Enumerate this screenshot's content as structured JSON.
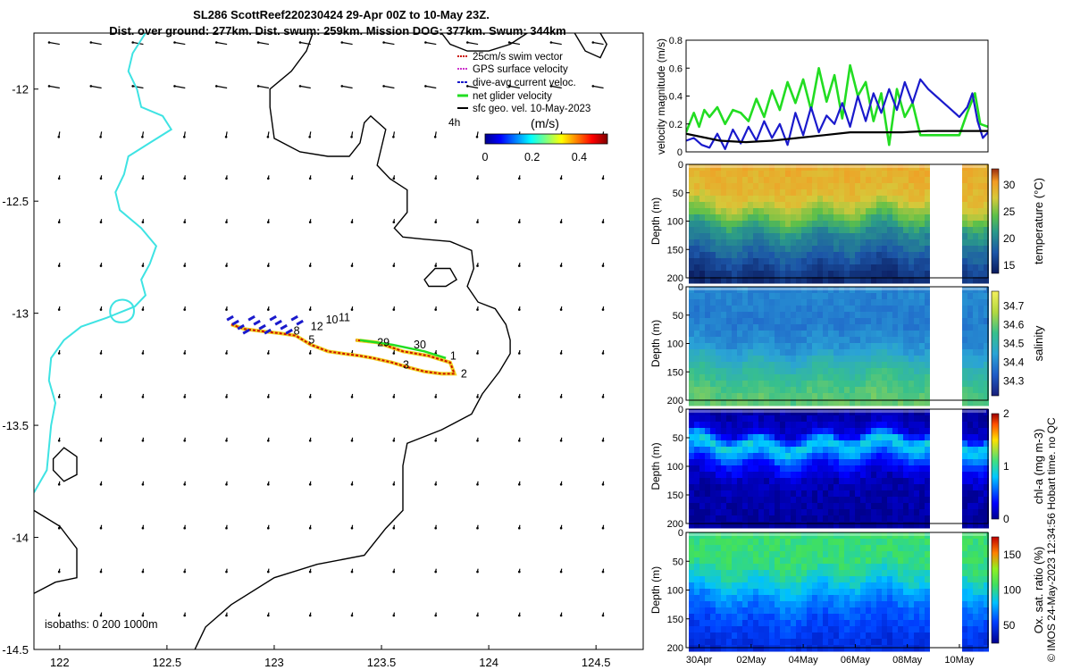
{
  "title": {
    "line1": "SL286 ScottReef220230424 29-Apr 00Z to 10-May 23Z.",
    "line2": "Dist. over ground: 277km. Dist. swum: 259km. Mission DOG: 377km. Swum: 344km"
  },
  "credit": "© IMOS 24-May-2023 12:34:56 Hobart time. no QC",
  "colors": {
    "coast": "#3ee3e3",
    "isobath": "#000000",
    "swim": "#cc1100",
    "gps": "#cc33cc",
    "dive": "#1a1acc",
    "net": "#22dd22",
    "geo": "#000000"
  },
  "chart_data": [
    {
      "type": "map",
      "name": "glider-track-map",
      "xlim": [
        121.88,
        124.72
      ],
      "ylim": [
        -14.5,
        -11.75
      ],
      "xticks": [
        "122",
        "122.5",
        "123",
        "123.5",
        "124",
        "124.5"
      ],
      "xtick_values": [
        122,
        122.5,
        123,
        123.5,
        124,
        124.5
      ],
      "yticks": [
        "-12",
        "-12.5",
        "-13",
        "-13.5",
        "-14",
        "-14.5"
      ],
      "ytick_values": [
        -12,
        -12.5,
        -13,
        -13.5,
        -14,
        -14.5
      ],
      "legend": [
        {
          "label": "25cm/s swim vector",
          "key": "swim"
        },
        {
          "label": "GPS surface velocity",
          "key": "gps"
        },
        {
          "label": "dive-avg current veloc.",
          "key": "dive"
        },
        {
          "label": "net glider velocity",
          "key": "net"
        },
        {
          "label": "sfc geo. vel. 10-May-2023",
          "key": "geo"
        }
      ],
      "legend_extra": "4h",
      "colorbar": {
        "label": "(m/s)",
        "ticks": [
          "0",
          "0.2",
          "0.4"
        ],
        "tick_values": [
          0,
          0.2,
          0.4
        ],
        "range": [
          0,
          0.52
        ]
      },
      "isobath_label": "isobaths: 0   200  1000m",
      "track_labels": [
        {
          "text": "1",
          "lon": 123.82,
          "lat": -13.19
        },
        {
          "text": "2",
          "lon": 123.87,
          "lat": -13.27
        },
        {
          "text": "3",
          "lon": 123.6,
          "lat": -13.23
        },
        {
          "text": "5",
          "lon": 123.16,
          "lat": -13.12
        },
        {
          "text": "8",
          "lon": 123.09,
          "lat": -13.08
        },
        {
          "text": "10",
          "lon": 123.24,
          "lat": -13.03
        },
        {
          "text": "11",
          "lon": 123.3,
          "lat": -13.02
        },
        {
          "text": "12",
          "lon": 123.17,
          "lat": -13.06
        },
        {
          "text": "29",
          "lon": 123.48,
          "lat": -13.13
        },
        {
          "text": "30",
          "lon": 123.65,
          "lat": -13.14
        }
      ],
      "track": [
        [
          122.8,
          -13.05
        ],
        [
          122.86,
          -13.07
        ],
        [
          122.94,
          -13.08
        ],
        [
          123.03,
          -13.09
        ],
        [
          123.1,
          -13.1
        ],
        [
          123.17,
          -13.14
        ],
        [
          123.25,
          -13.17
        ],
        [
          123.32,
          -13.18
        ],
        [
          123.4,
          -13.19
        ],
        [
          123.46,
          -13.2
        ],
        [
          123.55,
          -13.22
        ],
        [
          123.62,
          -13.24
        ],
        [
          123.7,
          -13.26
        ],
        [
          123.78,
          -13.27
        ],
        [
          123.84,
          -13.27
        ],
        [
          123.82,
          -13.22
        ],
        [
          123.72,
          -13.19
        ],
        [
          123.6,
          -13.17
        ],
        [
          123.48,
          -13.13
        ],
        [
          123.38,
          -13.12
        ]
      ],
      "coastline": [
        [
          122.4,
          -11.75
        ],
        [
          122.34,
          -11.84
        ],
        [
          122.32,
          -11.92
        ],
        [
          122.36,
          -12.0
        ],
        [
          122.38,
          -12.08
        ],
        [
          122.48,
          -12.12
        ],
        [
          122.52,
          -12.18
        ],
        [
          122.42,
          -12.24
        ],
        [
          122.32,
          -12.3
        ],
        [
          122.3,
          -12.38
        ],
        [
          122.26,
          -12.46
        ],
        [
          122.28,
          -12.54
        ],
        [
          122.38,
          -12.62
        ],
        [
          122.45,
          -12.7
        ],
        [
          122.42,
          -12.78
        ],
        [
          122.38,
          -12.85
        ],
        [
          122.4,
          -12.92
        ],
        [
          122.35,
          -12.97
        ],
        [
          122.22,
          -13.02
        ],
        [
          122.1,
          -13.06
        ],
        [
          122.02,
          -13.12
        ],
        [
          121.96,
          -13.2
        ],
        [
          121.95,
          -13.3
        ],
        [
          121.98,
          -13.4
        ],
        [
          121.96,
          -13.5
        ],
        [
          121.95,
          -13.6
        ],
        [
          121.94,
          -13.7
        ],
        [
          121.88,
          -13.8
        ]
      ],
      "isobath_200": [
        [
          123.18,
          -11.75
        ],
        [
          123.15,
          -11.83
        ],
        [
          123.08,
          -11.92
        ],
        [
          122.98,
          -12.0
        ],
        [
          122.98,
          -12.08
        ],
        [
          123.0,
          -12.22
        ],
        [
          123.12,
          -12.28
        ],
        [
          123.25,
          -12.3
        ],
        [
          123.35,
          -12.3
        ],
        [
          123.4,
          -12.24
        ],
        [
          123.42,
          -12.15
        ],
        [
          123.45,
          -12.12
        ],
        [
          123.52,
          -12.18
        ],
        [
          123.5,
          -12.26
        ],
        [
          123.48,
          -12.34
        ],
        [
          123.54,
          -12.4
        ],
        [
          123.62,
          -12.45
        ],
        [
          123.62,
          -12.55
        ],
        [
          123.56,
          -12.62
        ],
        [
          123.6,
          -12.66
        ],
        [
          123.7,
          -12.67
        ],
        [
          123.82,
          -12.68
        ],
        [
          123.92,
          -12.72
        ],
        [
          123.93,
          -12.8
        ],
        [
          123.9,
          -12.88
        ],
        [
          123.95,
          -12.95
        ],
        [
          124.03,
          -12.98
        ],
        [
          124.08,
          -13.05
        ],
        [
          124.1,
          -13.12
        ],
        [
          124.1,
          -13.18
        ],
        [
          124.05,
          -13.26
        ],
        [
          123.97,
          -13.36
        ],
        [
          123.92,
          -13.45
        ],
        [
          123.78,
          -13.52
        ],
        [
          123.62,
          -13.58
        ],
        [
          123.6,
          -13.68
        ],
        [
          123.6,
          -13.78
        ],
        [
          123.6,
          -13.88
        ],
        [
          123.52,
          -13.96
        ],
        [
          123.42,
          -14.08
        ],
        [
          123.2,
          -14.12
        ],
        [
          123.0,
          -14.18
        ],
        [
          122.8,
          -14.3
        ],
        [
          122.68,
          -14.4
        ],
        [
          122.63,
          -14.5
        ]
      ],
      "isobath_island": [
        [
          122.02,
          -13.6
        ],
        [
          121.97,
          -13.65
        ],
        [
          121.97,
          -13.7
        ],
        [
          122.02,
          -13.75
        ],
        [
          122.08,
          -13.72
        ],
        [
          122.08,
          -13.64
        ]
      ],
      "isobath_sw": [
        [
          121.88,
          -13.88
        ],
        [
          122.0,
          -13.95
        ],
        [
          122.08,
          -14.05
        ],
        [
          122.08,
          -14.18
        ],
        [
          121.98,
          -14.2
        ],
        [
          121.88,
          -14.25
        ]
      ],
      "isobath_ne": [
        [
          123.78,
          -11.75
        ],
        [
          123.82,
          -11.8
        ],
        [
          123.9,
          -11.83
        ],
        [
          124.0,
          -11.83
        ],
        [
          124.1,
          -11.8
        ],
        [
          124.18,
          -11.75
        ]
      ],
      "isobath_ne2": [
        [
          124.4,
          -11.75
        ],
        [
          124.45,
          -11.83
        ],
        [
          124.52,
          -11.86
        ],
        [
          124.55,
          -11.8
        ],
        [
          124.52,
          -11.75
        ]
      ],
      "isobath_reef": [
        [
          123.7,
          -12.85
        ],
        [
          123.75,
          -12.8
        ],
        [
          123.82,
          -12.8
        ],
        [
          123.85,
          -12.85
        ],
        [
          123.8,
          -12.88
        ],
        [
          123.72,
          -12.88
        ]
      ]
    },
    {
      "type": "line",
      "name": "velocity-magnitude",
      "ylabel": "velocity magnitude (m/s)",
      "xlim": [
        -0.3,
        11.3
      ],
      "ylim": [
        0,
        0.8
      ],
      "yticks": [
        "0",
        "0.2",
        "0.4",
        "0.6",
        "0.8"
      ],
      "ytick_values": [
        0,
        0.2,
        0.4,
        0.6,
        0.8
      ],
      "series": [
        {
          "name": "net glider velocity",
          "key": "net",
          "x": [
            -0.3,
            0.0,
            0.2,
            0.4,
            0.6,
            0.9,
            1.2,
            1.5,
            1.8,
            2.1,
            2.4,
            2.7,
            3.0,
            3.3,
            3.6,
            3.9,
            4.2,
            4.5,
            4.8,
            5.1,
            5.4,
            5.7,
            6.0,
            6.3,
            6.6,
            6.9,
            7.2,
            7.5,
            7.8,
            8.1,
            8.4,
            8.7,
            9.0,
            9.3,
            9.6,
            9.9,
            10.2,
            10.5,
            10.8,
            11.0,
            11.3
          ],
          "values": [
            0.14,
            0.28,
            0.18,
            0.3,
            0.25,
            0.32,
            0.2,
            0.3,
            0.28,
            0.22,
            0.38,
            0.25,
            0.44,
            0.3,
            0.5,
            0.35,
            0.52,
            0.3,
            0.6,
            0.36,
            0.55,
            0.24,
            0.62,
            0.4,
            0.5,
            0.22,
            0.42,
            0.05,
            0.45,
            0.25,
            0.35,
            0.12,
            0.12,
            0.12,
            0.12,
            0.12,
            0.12,
            0.28,
            0.42,
            0.2,
            0.18
          ]
        },
        {
          "name": "dive-avg current veloc.",
          "key": "dive",
          "x": [
            -0.3,
            0.0,
            0.3,
            0.6,
            0.9,
            1.2,
            1.5,
            1.8,
            2.1,
            2.4,
            2.7,
            3.0,
            3.3,
            3.6,
            3.9,
            4.2,
            4.5,
            4.8,
            5.1,
            5.4,
            5.7,
            6.0,
            6.3,
            6.6,
            6.9,
            7.2,
            7.5,
            7.8,
            8.1,
            8.4,
            8.7,
            9.0,
            9.3,
            9.6,
            9.9,
            10.2,
            10.5,
            10.7,
            10.9,
            11.1,
            11.3
          ],
          "values": [
            0.08,
            0.1,
            0.05,
            0.03,
            0.13,
            0.02,
            0.16,
            0.06,
            0.18,
            0.08,
            0.22,
            0.1,
            0.2,
            0.05,
            0.28,
            0.12,
            0.32,
            0.14,
            0.26,
            0.2,
            0.35,
            0.18,
            0.4,
            0.22,
            0.42,
            0.28,
            0.45,
            0.3,
            0.5,
            0.35,
            0.52,
            0.45,
            0.4,
            0.35,
            0.3,
            0.25,
            0.32,
            0.42,
            0.22,
            0.1,
            0.14
          ]
        },
        {
          "name": "sfc geo. vel.",
          "key": "geo",
          "x": [
            -0.3,
            1.0,
            2.0,
            3.0,
            4.0,
            5.0,
            6.0,
            7.0,
            8.0,
            9.0,
            10.0,
            11.3
          ],
          "values": [
            0.13,
            0.08,
            0.07,
            0.08,
            0.1,
            0.12,
            0.14,
            0.14,
            0.14,
            0.15,
            0.15,
            0.15
          ]
        }
      ]
    },
    {
      "type": "heatmap",
      "name": "temperature-section",
      "ylabel": "Depth (m)",
      "yticks": [
        "0",
        "50",
        "100",
        "150",
        "200"
      ],
      "ytick_values": [
        0,
        50,
        100,
        150,
        200
      ],
      "colorbar_label": "temperature (°C)",
      "colorbar_ticks": [
        "15",
        "20",
        "25",
        "30"
      ],
      "colorbar_tick_values": [
        15,
        20,
        25,
        30
      ],
      "crange": [
        13.5,
        33
      ],
      "profile": [
        [
          0,
          29.5
        ],
        [
          50,
          28.5
        ],
        [
          80,
          25.5
        ],
        [
          110,
          21
        ],
        [
          140,
          19
        ],
        [
          170,
          16.5
        ],
        [
          200,
          14.5
        ]
      ]
    },
    {
      "type": "heatmap",
      "name": "salinity-section",
      "ylabel": "Depth (m)",
      "yticks": [
        "0",
        "50",
        "100",
        "150",
        "200"
      ],
      "ytick_values": [
        0,
        50,
        100,
        150,
        200
      ],
      "colorbar_label": "salinity",
      "colorbar_ticks": [
        "34.3",
        "34.4",
        "34.5",
        "34.6",
        "34.7"
      ],
      "colorbar_tick_values": [
        34.3,
        34.4,
        34.5,
        34.6,
        34.7
      ],
      "crange": [
        34.22,
        34.78
      ],
      "profile": [
        [
          0,
          34.4
        ],
        [
          60,
          34.38
        ],
        [
          100,
          34.42
        ],
        [
          140,
          34.52
        ],
        [
          170,
          34.57
        ],
        [
          200,
          34.6
        ]
      ]
    },
    {
      "type": "heatmap",
      "name": "chlorophyll-section",
      "ylabel": "Depth (m)",
      "yticks": [
        "0",
        "50",
        "100",
        "150",
        "200"
      ],
      "ytick_values": [
        0,
        50,
        100,
        150,
        200
      ],
      "colorbar_label": "chl-a (mg m-3)",
      "colorbar_ticks": [
        "0",
        "1",
        "2"
      ],
      "colorbar_tick_values": [
        0,
        1,
        2
      ],
      "crange": [
        0,
        2
      ],
      "profile": [
        [
          0,
          0.05
        ],
        [
          35,
          0.2
        ],
        [
          55,
          0.9
        ],
        [
          70,
          0.7
        ],
        [
          90,
          0.35
        ],
        [
          120,
          0.1
        ],
        [
          200,
          0.02
        ]
      ]
    },
    {
      "type": "heatmap",
      "name": "oxygen-section",
      "xlabel_ticks": [
        "30Apr",
        "02May",
        "04May",
        "06May",
        "08May",
        "10May"
      ],
      "xtick_values": [
        1,
        3,
        5,
        7,
        9,
        11
      ],
      "ylabel": "Depth (m)",
      "yticks": [
        "0",
        "50",
        "100",
        "150",
        "200"
      ],
      "ytick_values": [
        0,
        50,
        100,
        150,
        200
      ],
      "colorbar_label": "Ox. sat. ratio (%)",
      "colorbar_ticks": [
        "50",
        "100",
        "150"
      ],
      "colorbar_tick_values": [
        50,
        100,
        150
      ],
      "crange": [
        25,
        175
      ],
      "profile": [
        [
          0,
          105
        ],
        [
          50,
          103
        ],
        [
          80,
          88
        ],
        [
          110,
          70
        ],
        [
          150,
          55
        ],
        [
          200,
          45
        ]
      ]
    }
  ]
}
